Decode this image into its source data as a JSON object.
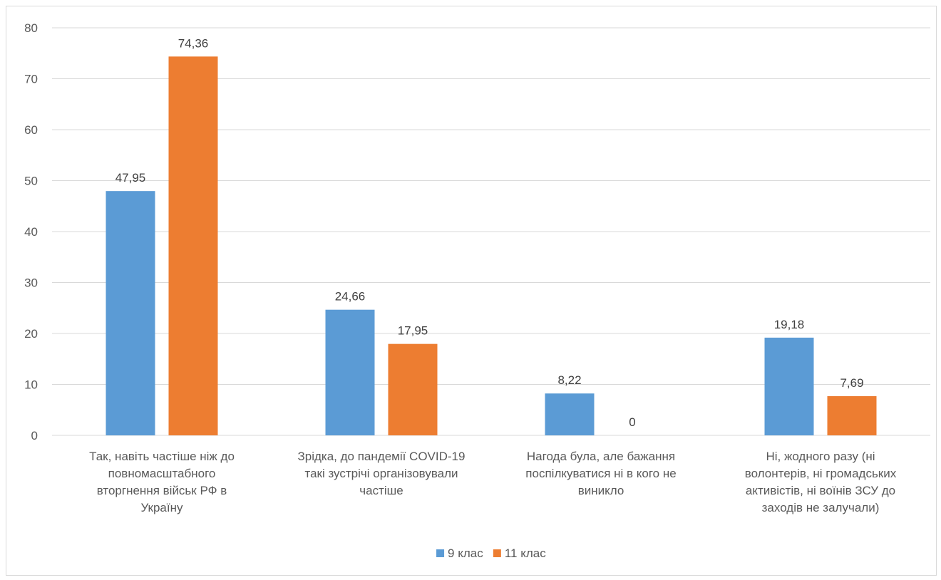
{
  "chart_data": {
    "type": "bar",
    "title": "",
    "xlabel": "",
    "ylabel": "",
    "ylim": [
      0,
      80
    ],
    "y_ticks": [
      0,
      10,
      20,
      30,
      40,
      50,
      60,
      70,
      80
    ],
    "grid": true,
    "legend_position": "bottom",
    "categories": [
      [
        "Так, навіть частіше ніж до",
        "повномасштабного",
        "вторгнення військ РФ в",
        "Україну"
      ],
      [
        "Зрідка, до пандемії COVID-19",
        "такі зустрічі організовували",
        "частіше"
      ],
      [
        "Нагода була, але бажання",
        "поспілкуватися ні в кого не",
        "виникло"
      ],
      [
        "Ні, жодного разу (ні",
        "волонтерів, ні громадських",
        "активістів, ні воїнів ЗСУ до",
        "заходів не залучали)"
      ]
    ],
    "series": [
      {
        "name": "9 клас",
        "color": "#5b9bd5",
        "values": [
          47.95,
          24.66,
          8.22,
          19.18
        ],
        "labels": [
          "47,95",
          "24,66",
          "8,22",
          "19,18"
        ]
      },
      {
        "name": "11 клас",
        "color": "#ed7d31",
        "values": [
          74.36,
          17.95,
          0,
          7.69
        ],
        "labels": [
          "74,36",
          "17,95",
          "0",
          "7,69"
        ]
      }
    ]
  }
}
